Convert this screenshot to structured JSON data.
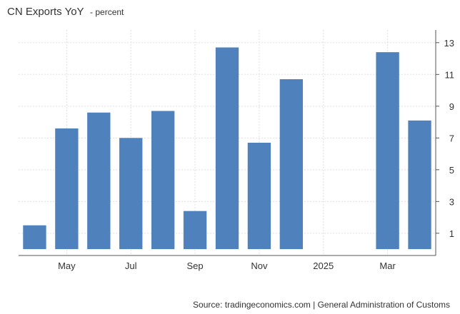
{
  "title": "CN Exports YoY",
  "unit": "- percent",
  "source": "Source: tradingeconomics.com | General Administration of Customs",
  "colors": {
    "bar": "#4f81bd",
    "grid": "#e0e0e0",
    "axis": "#555555",
    "text": "#333333"
  },
  "chart_data": {
    "type": "bar",
    "categories": [
      "2024-04",
      "2024-05",
      "2024-06",
      "2024-07",
      "2024-08",
      "2024-09",
      "2024-10",
      "2024-11",
      "2024-12",
      "2025-01",
      "2025-02",
      "2025-03",
      "2025-04"
    ],
    "x_tick_labels": [
      {
        "at": "2024-05",
        "label": "May"
      },
      {
        "at": "2024-07",
        "label": "Jul"
      },
      {
        "at": "2024-09",
        "label": "Sep"
      },
      {
        "at": "2024-11",
        "label": "Nov"
      },
      {
        "at": "2025-01",
        "label": "2025"
      },
      {
        "at": "2025-03",
        "label": "Mar"
      }
    ],
    "series": [
      {
        "values": [
          1.5,
          7.6,
          8.6,
          7.0,
          8.7,
          2.4,
          12.7,
          6.7,
          10.7,
          null,
          null,
          12.4,
          8.1
        ]
      }
    ],
    "ylim": [
      -0.4,
      13.8
    ],
    "yticks": [
      1,
      3,
      5,
      7,
      9,
      11,
      13
    ],
    "y_axis_side": "right",
    "grid": true,
    "legend": false
  }
}
